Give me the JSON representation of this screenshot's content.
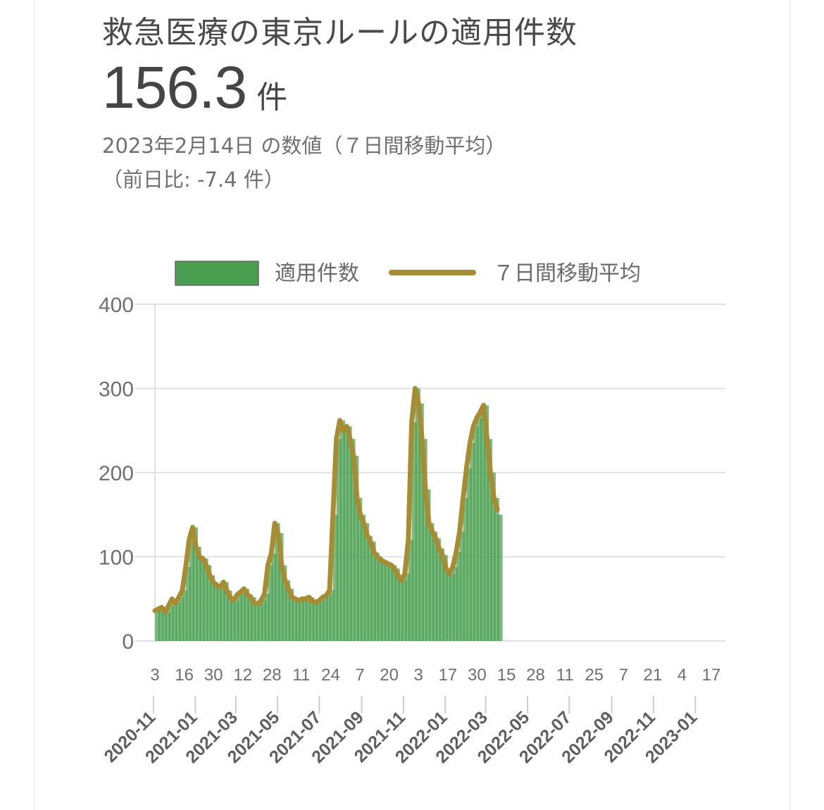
{
  "header": {
    "title": "救急医療の東京ルールの適用件数",
    "value": "156.3",
    "unit": "件",
    "date_text": "2023年2月14日 の数値（７日間移動平均）",
    "diff_text": "（前日比: -7.4 件）"
  },
  "chart_data": {
    "type": "bar",
    "title": "",
    "xlabel": "",
    "ylabel": "",
    "ylim": [
      0,
      400
    ],
    "yticks": [
      0,
      100,
      200,
      300,
      400
    ],
    "grid": true,
    "legend_position": "top",
    "x_range": [
      "2020-11-03",
      "2023-02-14"
    ],
    "day_ticks": [
      "3",
      "16",
      "30",
      "12",
      "28",
      "11",
      "24",
      "7",
      "20",
      "3",
      "17",
      "30",
      "15",
      "28",
      "11",
      "25",
      "7",
      "21",
      "4",
      "17"
    ],
    "month_ticks": [
      "2020-11",
      "2021-01",
      "2021-03",
      "2021-05",
      "2021-07",
      "2021-09",
      "2021-11",
      "2022-01",
      "2022-03",
      "2022-05",
      "2022-07",
      "2022-09",
      "2022-11",
      "2023-01"
    ],
    "series": [
      {
        "name": "適用件数",
        "kind": "bar",
        "color": "#4a9e4f",
        "sampling": "every 5 days from 2020-11-03",
        "values": [
          36,
          38,
          40,
          34,
          42,
          50,
          45,
          52,
          60,
          88,
          120,
          135,
          112,
          100,
          98,
          90,
          78,
          70,
          66,
          64,
          70,
          60,
          52,
          48,
          55,
          58,
          62,
          55,
          52,
          45,
          44,
          48,
          56,
          90,
          104,
          140,
          128,
          90,
          72,
          62,
          52,
          50,
          48,
          50,
          50,
          52,
          47,
          46,
          48,
          52,
          54,
          60,
          150,
          240,
          262,
          250,
          255,
          240,
          220,
          170,
          150,
          140,
          125,
          118,
          105,
          100,
          96,
          94,
          92,
          90,
          86,
          78,
          72,
          80,
          120,
          260,
          300,
          282,
          240,
          180,
          140,
          130,
          122,
          110,
          102,
          86,
          80,
          88,
          106,
          130,
          170,
          205,
          235,
          255,
          265,
          272,
          280,
          240,
          200,
          170,
          150
        ]
      },
      {
        "name": "７日間移動平均",
        "kind": "line",
        "color": "#a68c32",
        "sampling": "every 5 days from 2020-11-03",
        "values": [
          36,
          38,
          40,
          34,
          42,
          50,
          45,
          52,
          60,
          88,
          120,
          135,
          112,
          100,
          98,
          90,
          78,
          70,
          66,
          64,
          70,
          60,
          52,
          48,
          55,
          58,
          62,
          55,
          52,
          45,
          44,
          48,
          56,
          90,
          104,
          140,
          128,
          90,
          72,
          62,
          52,
          50,
          48,
          50,
          50,
          52,
          47,
          46,
          48,
          52,
          54,
          60,
          150,
          240,
          262,
          250,
          255,
          240,
          220,
          170,
          150,
          140,
          125,
          118,
          105,
          100,
          96,
          94,
          92,
          90,
          86,
          78,
          72,
          80,
          120,
          260,
          300,
          282,
          240,
          180,
          140,
          130,
          122,
          110,
          102,
          86,
          80,
          88,
          106,
          130,
          170,
          205,
          235,
          255,
          265,
          272,
          280,
          240,
          200,
          170,
          156
        ]
      }
    ],
    "colors": {
      "grid": "#e2e2e2",
      "axis_text": "#6f6f6f",
      "month_text": "#5f5f5f"
    }
  }
}
